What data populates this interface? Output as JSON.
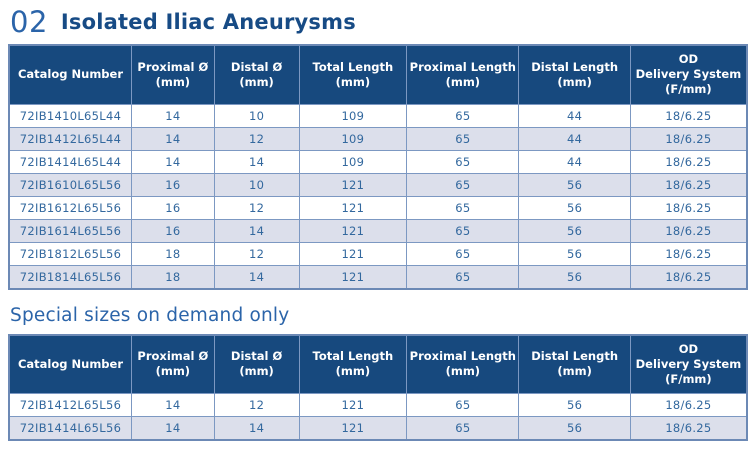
{
  "header": {
    "section_number": "02",
    "title": "Isolated Iliac Aneurysms"
  },
  "subtitle": "Special sizes on demand only",
  "columns": [
    {
      "lines": [
        "Catalog Number"
      ]
    },
    {
      "lines": [
        "Proximal Ø",
        "(mm)"
      ]
    },
    {
      "lines": [
        "Distal Ø",
        "(mm)"
      ]
    },
    {
      "lines": [
        "Total Length",
        "(mm)"
      ]
    },
    {
      "lines": [
        "Proximal Length",
        "(mm)"
      ]
    },
    {
      "lines": [
        "Distal Length",
        "(mm)"
      ]
    },
    {
      "lines": [
        "OD",
        "Delivery System",
        "(F/mm)"
      ]
    }
  ],
  "main_table": {
    "rows": [
      [
        "72IB1410L65L44",
        "14",
        "10",
        "109",
        "65",
        "44",
        "18/6.25"
      ],
      [
        "72IB1412L65L44",
        "14",
        "12",
        "109",
        "65",
        "44",
        "18/6.25"
      ],
      [
        "72IB1414L65L44",
        "14",
        "14",
        "109",
        "65",
        "44",
        "18/6.25"
      ],
      [
        "72IB1610L65L56",
        "16",
        "10",
        "121",
        "65",
        "56",
        "18/6.25"
      ],
      [
        "72IB1612L65L56",
        "16",
        "12",
        "121",
        "65",
        "56",
        "18/6.25"
      ],
      [
        "72IB1614L65L56",
        "16",
        "14",
        "121",
        "65",
        "56",
        "18/6.25"
      ],
      [
        "72IB1812L65L56",
        "18",
        "12",
        "121",
        "65",
        "56",
        "18/6.25"
      ],
      [
        "72IB1814L65L56",
        "18",
        "14",
        "121",
        "65",
        "56",
        "18/6.25"
      ]
    ]
  },
  "special_table": {
    "rows": [
      [
        "72IB1412L65L56",
        "14",
        "12",
        "121",
        "65",
        "56",
        "18/6.25"
      ],
      [
        "72IB1414L65L56",
        "14",
        "14",
        "121",
        "65",
        "56",
        "18/6.25"
      ]
    ]
  },
  "colors": {
    "header_navy": "#17497E",
    "title_navy": "#174B85",
    "accent_blue": "#2B64A9",
    "cell_text": "#33689E",
    "row_alt": "#DCDFEB",
    "border_inner": "#7C98C2",
    "border_outer": "#6C89B5"
  }
}
